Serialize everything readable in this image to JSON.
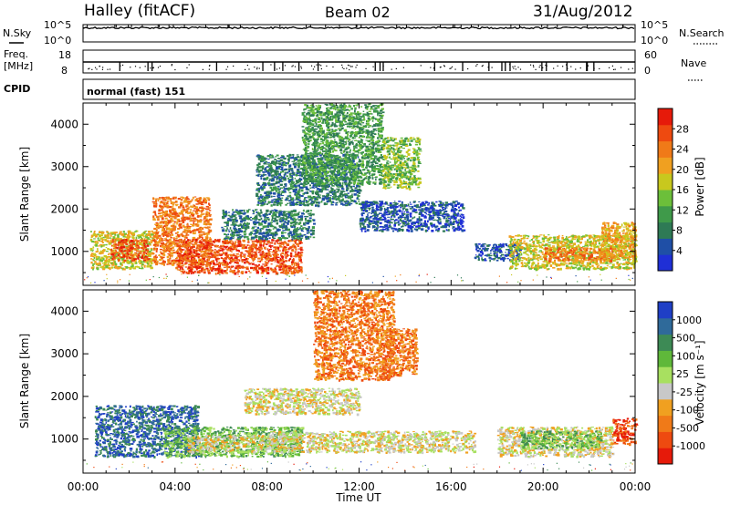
{
  "header": {
    "station": "Halley (fitACF)",
    "beam": "Beam 02",
    "date": "31/Aug/2012"
  },
  "status_panels": {
    "nsky_label": "N.Sky",
    "nsky_ticks": [
      "10^5",
      "10^0"
    ],
    "nsearch_label": "N.Search",
    "nsearch_ticks": [
      "10^5",
      "10^0"
    ],
    "freq_label": "Freq.",
    "freq_unit": "[MHz]",
    "freq_ticks": [
      "18",
      "8"
    ],
    "nave_label": "Nave",
    "nave_ticks": [
      "60",
      "0"
    ],
    "cpid_label": "CPID",
    "cpid_value": "normal (fast) 151"
  },
  "chart_data": [
    {
      "type": "heatmap",
      "name": "power",
      "ylabel": "Slant Range [km]",
      "yticks": [
        "1000",
        "2000",
        "3000",
        "4000"
      ],
      "ylim": [
        200,
        4500
      ],
      "xlim_hours": [
        0,
        24
      ],
      "colorbar": {
        "label": "Power [dB]",
        "ticks": [
          "28",
          "24",
          "20",
          "16",
          "12",
          "8",
          "4"
        ],
        "colors": [
          "#1f2fd6",
          "#1f4fa6",
          "#2e7a55",
          "#3f9a4a",
          "#6cbf3a",
          "#c8c81e",
          "#f0a020",
          "#f07a18",
          "#ee4a10",
          "#e61a0a"
        ]
      },
      "echo_regions": [
        {
          "t0": 0.3,
          "t1": 3.0,
          "r0": 600,
          "r1": 1500,
          "level": 5
        },
        {
          "t0": 1.2,
          "t1": 2.8,
          "r0": 800,
          "r1": 1300,
          "level": 8
        },
        {
          "t0": 3.0,
          "t1": 5.5,
          "r0": 700,
          "r1": 2300,
          "level": 7
        },
        {
          "t0": 4.0,
          "t1": 9.5,
          "r0": 500,
          "r1": 1300,
          "level": 8
        },
        {
          "t0": 6.0,
          "t1": 10.0,
          "r0": 1300,
          "r1": 2000,
          "level": 2
        },
        {
          "t0": 7.5,
          "t1": 12.0,
          "r0": 2100,
          "r1": 3300,
          "level": 2
        },
        {
          "t0": 9.5,
          "t1": 13.0,
          "r0": 2600,
          "r1": 4500,
          "level": 3
        },
        {
          "t0": 13.0,
          "t1": 14.6,
          "r0": 2500,
          "r1": 3700,
          "level": 4
        },
        {
          "t0": 12.0,
          "t1": 16.5,
          "r0": 1500,
          "r1": 2200,
          "level": 1
        },
        {
          "t0": 17.0,
          "t1": 19.0,
          "r0": 800,
          "r1": 1200,
          "level": 1
        },
        {
          "t0": 18.5,
          "t1": 24.0,
          "r0": 600,
          "r1": 1400,
          "level": 5
        },
        {
          "t0": 20.0,
          "t1": 23.0,
          "r0": 800,
          "r1": 1100,
          "level": 7
        },
        {
          "t0": 22.5,
          "t1": 24.0,
          "r0": 800,
          "r1": 1700,
          "level": 6
        }
      ]
    },
    {
      "type": "heatmap",
      "name": "velocity",
      "ylabel": "Slant Range [km]",
      "yticks": [
        "1000",
        "2000",
        "3000",
        "4000"
      ],
      "ylim": [
        200,
        4500
      ],
      "xlim_hours": [
        0,
        24
      ],
      "colorbar": {
        "label": "Velocity [m s⁻¹]",
        "ticks": [
          "1000",
          "500",
          "100",
          "25",
          "-25",
          "-100",
          "-500",
          "-1000"
        ],
        "colors": [
          "#1f3fc6",
          "#2f6a9a",
          "#3d8a55",
          "#5fb83a",
          "#a8e060",
          "#c8c8c8",
          "#f0a020",
          "#f07a18",
          "#ee4a10",
          "#e61a0a"
        ]
      },
      "echo_regions": [
        {
          "t0": 0.5,
          "t1": 5.0,
          "r0": 600,
          "r1": 1800,
          "level": 1
        },
        {
          "t0": 3.5,
          "t1": 9.5,
          "r0": 600,
          "r1": 1300,
          "level": 3
        },
        {
          "t0": 4.5,
          "t1": 8.0,
          "r0": 700,
          "r1": 1100,
          "level": 5
        },
        {
          "t0": 7.0,
          "t1": 12.0,
          "r0": 1600,
          "r1": 2200,
          "level": 5
        },
        {
          "t0": 10.0,
          "t1": 13.5,
          "r0": 2400,
          "r1": 4500,
          "level": 7
        },
        {
          "t0": 13.0,
          "t1": 14.5,
          "r0": 2500,
          "r1": 3600,
          "level": 7
        },
        {
          "t0": 8.0,
          "t1": 17.0,
          "r0": 700,
          "r1": 1200,
          "level": 5
        },
        {
          "t0": 18.0,
          "t1": 23.0,
          "r0": 600,
          "r1": 1300,
          "level": 5
        },
        {
          "t0": 19.0,
          "t1": 22.5,
          "r0": 800,
          "r1": 1200,
          "level": 3
        },
        {
          "t0": 23.0,
          "t1": 24.0,
          "r0": 900,
          "r1": 1500,
          "level": 8
        }
      ]
    }
  ],
  "x_axis": {
    "label": "Time UT",
    "ticks": [
      "00:00",
      "04:00",
      "08:00",
      "12:00",
      "16:00",
      "20:00",
      "00:00"
    ]
  }
}
